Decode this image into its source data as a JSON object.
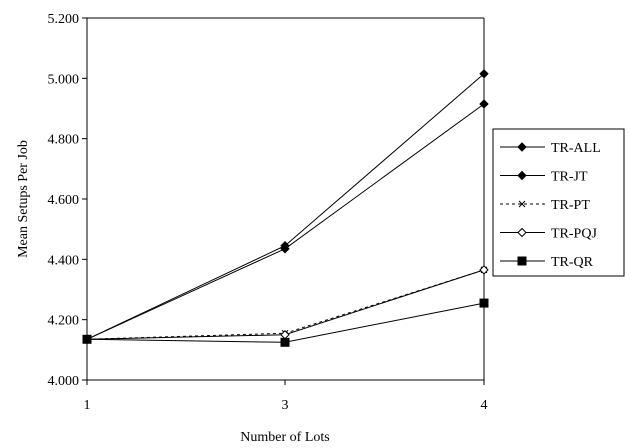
{
  "chart_data": {
    "type": "line",
    "title": "",
    "xlabel": "Number of Lots",
    "ylabel": "Mean Setups Per Job",
    "categories": [
      "1",
      "3",
      "4"
    ],
    "ylim": [
      4.0,
      5.2
    ],
    "yticks": [
      "4.000",
      "4.200",
      "4.400",
      "4.600",
      "4.800",
      "5.000",
      "5.200"
    ],
    "grid": false,
    "legend_position": "right",
    "series": [
      {
        "name": "TR-ALL",
        "values": [
          4.135,
          4.445,
          5.015
        ],
        "marker": "diamond-filled",
        "dash": "solid"
      },
      {
        "name": "TR-JT",
        "values": [
          4.135,
          4.435,
          4.915
        ],
        "marker": "diamond-filled",
        "dash": "solid"
      },
      {
        "name": "TR-PT",
        "values": [
          4.135,
          4.155,
          4.365
        ],
        "marker": "x",
        "dash": "dashed"
      },
      {
        "name": "TR-PQJ",
        "values": [
          4.135,
          4.15,
          4.365
        ],
        "marker": "diamond-open",
        "dash": "solid"
      },
      {
        "name": "TR-QR",
        "values": [
          4.135,
          4.125,
          4.255
        ],
        "marker": "square-filled",
        "dash": "solid"
      }
    ]
  }
}
